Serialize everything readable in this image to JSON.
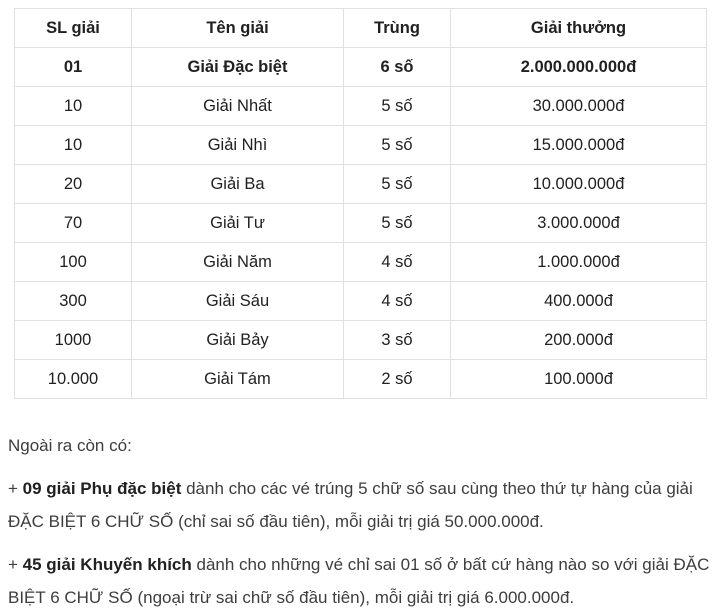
{
  "table": {
    "headers": [
      "SL giải",
      "Tên giải",
      "Trùng",
      "Giải thưởng"
    ],
    "rows": [
      {
        "sl": "01",
        "ten": "Giải Đặc biệt",
        "trung": "6 số",
        "thuong": "2.000.000.000đ"
      },
      {
        "sl": "10",
        "ten": "Giải Nhất",
        "trung": "5 số",
        "thuong": "30.000.000đ"
      },
      {
        "sl": "10",
        "ten": "Giải Nhì",
        "trung": "5 số",
        "thuong": "15.000.000đ"
      },
      {
        "sl": "20",
        "ten": "Giải Ba",
        "trung": "5 số",
        "thuong": "10.000.000đ"
      },
      {
        "sl": "70",
        "ten": "Giải Tư",
        "trung": "5 số",
        "thuong": "3.000.000đ"
      },
      {
        "sl": "100",
        "ten": "Giải Năm",
        "trung": "4 số",
        "thuong": "1.000.000đ"
      },
      {
        "sl": "300",
        "ten": "Giải Sáu",
        "trung": "4 số",
        "thuong": "400.000đ"
      },
      {
        "sl": "1000",
        "ten": "Giải Bảy",
        "trung": "3 số",
        "thuong": "200.000đ"
      },
      {
        "sl": "10.000",
        "ten": "Giải Tám",
        "trung": "2 số",
        "thuong": "100.000đ"
      }
    ]
  },
  "notes": {
    "intro": "Ngoài ra còn có:",
    "items": [
      {
        "prefix": "+ ",
        "bold": "09 giải Phụ đặc biệt",
        "rest": " dành cho các vé trúng 5 chữ số sau cùng theo thứ tự hàng của giải ĐẶC BIỆT 6 CHỮ SỐ (chỉ sai số đầu tiên), mỗi giải trị giá 50.000.000đ."
      },
      {
        "prefix": "+ ",
        "bold": "45 giải Khuyến khích",
        "rest": " dành cho những vé chỉ sai 01 số ở bất cứ hàng nào so với giải ĐẶC BIỆT 6 CHỮ SỐ (ngoại trừ sai chữ số đầu tiên), mỗi giải trị giá 6.000.000đ."
      }
    ]
  },
  "colors": {
    "border": "#e0e0e0",
    "text": "#212121",
    "body_text": "#3d3d3d",
    "background": "#ffffff"
  }
}
